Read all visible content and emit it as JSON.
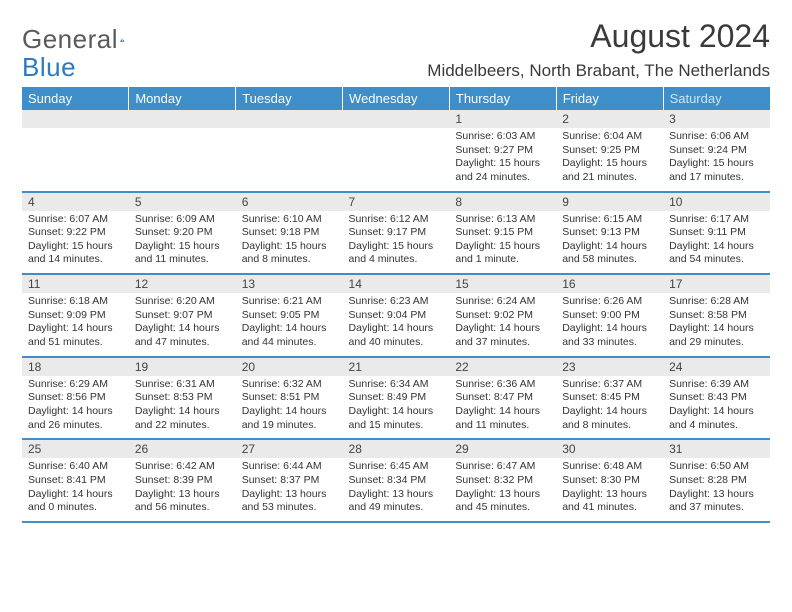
{
  "brand": {
    "part1": "General",
    "part2": "Blue"
  },
  "title": "August 2024",
  "location": "Middelbeers, North Brabant, The Netherlands",
  "colors": {
    "header_bg": "#3d8ec9",
    "header_text": "#ffffff",
    "band_bg": "#eaeaea",
    "rule": "#3d8ec9",
    "brand_gray": "#5a5a5a",
    "brand_blue": "#2b7bbf"
  },
  "dow": [
    "Sunday",
    "Monday",
    "Tuesday",
    "Wednesday",
    "Thursday",
    "Friday",
    "Saturday"
  ],
  "weeks": [
    [
      {
        "n": "",
        "sr": "",
        "ss": "",
        "dl": ""
      },
      {
        "n": "",
        "sr": "",
        "ss": "",
        "dl": ""
      },
      {
        "n": "",
        "sr": "",
        "ss": "",
        "dl": ""
      },
      {
        "n": "",
        "sr": "",
        "ss": "",
        "dl": ""
      },
      {
        "n": "1",
        "sr": "Sunrise: 6:03 AM",
        "ss": "Sunset: 9:27 PM",
        "dl": "Daylight: 15 hours and 24 minutes."
      },
      {
        "n": "2",
        "sr": "Sunrise: 6:04 AM",
        "ss": "Sunset: 9:25 PM",
        "dl": "Daylight: 15 hours and 21 minutes."
      },
      {
        "n": "3",
        "sr": "Sunrise: 6:06 AM",
        "ss": "Sunset: 9:24 PM",
        "dl": "Daylight: 15 hours and 17 minutes."
      }
    ],
    [
      {
        "n": "4",
        "sr": "Sunrise: 6:07 AM",
        "ss": "Sunset: 9:22 PM",
        "dl": "Daylight: 15 hours and 14 minutes."
      },
      {
        "n": "5",
        "sr": "Sunrise: 6:09 AM",
        "ss": "Sunset: 9:20 PM",
        "dl": "Daylight: 15 hours and 11 minutes."
      },
      {
        "n": "6",
        "sr": "Sunrise: 6:10 AM",
        "ss": "Sunset: 9:18 PM",
        "dl": "Daylight: 15 hours and 8 minutes."
      },
      {
        "n": "7",
        "sr": "Sunrise: 6:12 AM",
        "ss": "Sunset: 9:17 PM",
        "dl": "Daylight: 15 hours and 4 minutes."
      },
      {
        "n": "8",
        "sr": "Sunrise: 6:13 AM",
        "ss": "Sunset: 9:15 PM",
        "dl": "Daylight: 15 hours and 1 minute."
      },
      {
        "n": "9",
        "sr": "Sunrise: 6:15 AM",
        "ss": "Sunset: 9:13 PM",
        "dl": "Daylight: 14 hours and 58 minutes."
      },
      {
        "n": "10",
        "sr": "Sunrise: 6:17 AM",
        "ss": "Sunset: 9:11 PM",
        "dl": "Daylight: 14 hours and 54 minutes."
      }
    ],
    [
      {
        "n": "11",
        "sr": "Sunrise: 6:18 AM",
        "ss": "Sunset: 9:09 PM",
        "dl": "Daylight: 14 hours and 51 minutes."
      },
      {
        "n": "12",
        "sr": "Sunrise: 6:20 AM",
        "ss": "Sunset: 9:07 PM",
        "dl": "Daylight: 14 hours and 47 minutes."
      },
      {
        "n": "13",
        "sr": "Sunrise: 6:21 AM",
        "ss": "Sunset: 9:05 PM",
        "dl": "Daylight: 14 hours and 44 minutes."
      },
      {
        "n": "14",
        "sr": "Sunrise: 6:23 AM",
        "ss": "Sunset: 9:04 PM",
        "dl": "Daylight: 14 hours and 40 minutes."
      },
      {
        "n": "15",
        "sr": "Sunrise: 6:24 AM",
        "ss": "Sunset: 9:02 PM",
        "dl": "Daylight: 14 hours and 37 minutes."
      },
      {
        "n": "16",
        "sr": "Sunrise: 6:26 AM",
        "ss": "Sunset: 9:00 PM",
        "dl": "Daylight: 14 hours and 33 minutes."
      },
      {
        "n": "17",
        "sr": "Sunrise: 6:28 AM",
        "ss": "Sunset: 8:58 PM",
        "dl": "Daylight: 14 hours and 29 minutes."
      }
    ],
    [
      {
        "n": "18",
        "sr": "Sunrise: 6:29 AM",
        "ss": "Sunset: 8:56 PM",
        "dl": "Daylight: 14 hours and 26 minutes."
      },
      {
        "n": "19",
        "sr": "Sunrise: 6:31 AM",
        "ss": "Sunset: 8:53 PM",
        "dl": "Daylight: 14 hours and 22 minutes."
      },
      {
        "n": "20",
        "sr": "Sunrise: 6:32 AM",
        "ss": "Sunset: 8:51 PM",
        "dl": "Daylight: 14 hours and 19 minutes."
      },
      {
        "n": "21",
        "sr": "Sunrise: 6:34 AM",
        "ss": "Sunset: 8:49 PM",
        "dl": "Daylight: 14 hours and 15 minutes."
      },
      {
        "n": "22",
        "sr": "Sunrise: 6:36 AM",
        "ss": "Sunset: 8:47 PM",
        "dl": "Daylight: 14 hours and 11 minutes."
      },
      {
        "n": "23",
        "sr": "Sunrise: 6:37 AM",
        "ss": "Sunset: 8:45 PM",
        "dl": "Daylight: 14 hours and 8 minutes."
      },
      {
        "n": "24",
        "sr": "Sunrise: 6:39 AM",
        "ss": "Sunset: 8:43 PM",
        "dl": "Daylight: 14 hours and 4 minutes."
      }
    ],
    [
      {
        "n": "25",
        "sr": "Sunrise: 6:40 AM",
        "ss": "Sunset: 8:41 PM",
        "dl": "Daylight: 14 hours and 0 minutes."
      },
      {
        "n": "26",
        "sr": "Sunrise: 6:42 AM",
        "ss": "Sunset: 8:39 PM",
        "dl": "Daylight: 13 hours and 56 minutes."
      },
      {
        "n": "27",
        "sr": "Sunrise: 6:44 AM",
        "ss": "Sunset: 8:37 PM",
        "dl": "Daylight: 13 hours and 53 minutes."
      },
      {
        "n": "28",
        "sr": "Sunrise: 6:45 AM",
        "ss": "Sunset: 8:34 PM",
        "dl": "Daylight: 13 hours and 49 minutes."
      },
      {
        "n": "29",
        "sr": "Sunrise: 6:47 AM",
        "ss": "Sunset: 8:32 PM",
        "dl": "Daylight: 13 hours and 45 minutes."
      },
      {
        "n": "30",
        "sr": "Sunrise: 6:48 AM",
        "ss": "Sunset: 8:30 PM",
        "dl": "Daylight: 13 hours and 41 minutes."
      },
      {
        "n": "31",
        "sr": "Sunrise: 6:50 AM",
        "ss": "Sunset: 8:28 PM",
        "dl": "Daylight: 13 hours and 37 minutes."
      }
    ]
  ]
}
